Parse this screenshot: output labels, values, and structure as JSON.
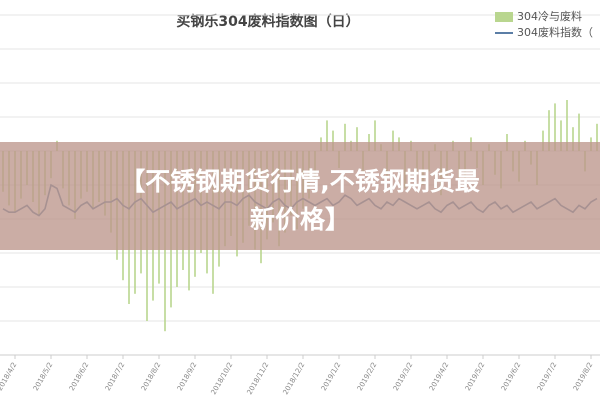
{
  "chart_data": {
    "type": "bar",
    "title": "买钢乐304废料指数图（日）",
    "categories": [
      null,
      null,
      "2018/4/2",
      null,
      null,
      null,
      null,
      null,
      "2018/5/2",
      null,
      null,
      null,
      null,
      null,
      "2018/6/2",
      null,
      null,
      null,
      null,
      null,
      "2018/7/2",
      null,
      null,
      null,
      null,
      null,
      "2018/8/2",
      null,
      null,
      null,
      null,
      null,
      "2018/9/2",
      null,
      null,
      null,
      null,
      null,
      "2018/10/2",
      null,
      null,
      null,
      null,
      null,
      "2018/11/2",
      null,
      null,
      null,
      null,
      null,
      "2018/12/2",
      null,
      null,
      null,
      null,
      null,
      "2019/1/2",
      null,
      null,
      null,
      null,
      null,
      "2019/2/2",
      null,
      null,
      null,
      null,
      null,
      "2019/3/2",
      null,
      null,
      null,
      null,
      null,
      "2019/4/2",
      null,
      null,
      null,
      null,
      null,
      "2019/5/2",
      null,
      null,
      null,
      null,
      null,
      "2019/6/2",
      null,
      null,
      null,
      null,
      null,
      "2019/7/2",
      null,
      null,
      null,
      null,
      null,
      "2019/8/2",
      null
    ],
    "series": [
      {
        "name": "304冷与废料",
        "type": "bar",
        "color": "#b9d68f",
        "values": [
          -1.2,
          -1.6,
          -1.8,
          -1.4,
          -1.0,
          -1.5,
          -1.9,
          -1.3,
          -0.8,
          0.3,
          -1.1,
          -1.6,
          -2.0,
          -1.4,
          -1.2,
          -1.7,
          -1.5,
          -1.9,
          -2.4,
          -3.2,
          -3.8,
          -4.5,
          -4.2,
          -3.6,
          -5.0,
          -4.4,
          -3.9,
          -5.3,
          -4.6,
          -4.0,
          -3.5,
          -4.1,
          -3.7,
          -3.0,
          -3.6,
          -4.2,
          -3.4,
          -2.8,
          -2.5,
          -3.1,
          -2.7,
          -2.2,
          -2.9,
          -3.3,
          -2.6,
          -2.1,
          -2.8,
          -2.4,
          -1.9,
          -2.3,
          -1.7,
          -1.4,
          -0.9,
          0.4,
          0.9,
          0.6,
          -0.5,
          0.8,
          0.3,
          0.7,
          -0.6,
          0.5,
          0.9,
          0.2,
          -0.8,
          0.6,
          0.4,
          -1.1,
          0.3,
          -0.7,
          -1.0,
          -0.6,
          0.2,
          -1.3,
          -0.8,
          0.3,
          -0.9,
          -1.2,
          0.4,
          -0.5,
          -1.0,
          0.2,
          -0.7,
          -1.1,
          0.5,
          -0.6,
          -0.9,
          0.3,
          -0.4,
          -1.0,
          0.6,
          1.2,
          1.4,
          0.9,
          1.5,
          0.7,
          1.1,
          -0.6,
          0.4,
          0.8
        ]
      },
      {
        "name": "304废料指数（",
        "type": "line",
        "color": "#5b7ea6",
        "values": [
          -1.7,
          -1.8,
          -1.8,
          -1.7,
          -1.6,
          -1.8,
          -1.9,
          -1.7,
          -1.0,
          -1.1,
          -1.6,
          -1.7,
          -1.8,
          -1.6,
          -1.5,
          -1.7,
          -1.6,
          -1.5,
          -1.5,
          -1.4,
          -1.6,
          -1.7,
          -1.5,
          -1.4,
          -1.6,
          -1.8,
          -1.7,
          -1.6,
          -1.5,
          -1.7,
          -1.6,
          -1.5,
          -1.4,
          -1.6,
          -1.5,
          -1.6,
          -1.7,
          -1.5,
          -1.5,
          -1.6,
          -1.4,
          -1.3,
          -1.5,
          -1.6,
          -1.7,
          -1.5,
          -1.4,
          -1.6,
          -1.7,
          -1.5,
          -1.4,
          -1.5,
          -1.6,
          -1.5,
          -1.4,
          -1.6,
          -1.5,
          -1.3,
          -1.4,
          -1.6,
          -1.5,
          -1.4,
          -1.6,
          -1.7,
          -1.5,
          -1.6,
          -1.4,
          -1.5,
          -1.6,
          -1.7,
          -1.6,
          -1.5,
          -1.7,
          -1.8,
          -1.6,
          -1.5,
          -1.7,
          -1.6,
          -1.5,
          -1.7,
          -1.8,
          -1.6,
          -1.5,
          -1.7,
          -1.6,
          -1.8,
          -1.7,
          -1.6,
          -1.5,
          -1.7,
          -1.6,
          -1.5,
          -1.4,
          -1.6,
          -1.7,
          -1.8,
          -1.6,
          -1.7,
          -1.5,
          -1.4
        ]
      }
    ],
    "ylim": [
      -6,
      4
    ],
    "yticks": [
      -6,
      -5,
      -4,
      -3,
      -2,
      -1,
      0,
      1,
      2,
      3,
      4
    ],
    "grid": true
  },
  "banner": {
    "lines": [
      "【不锈钢期货行情,不锈钢期货最",
      "新价格】"
    ]
  }
}
